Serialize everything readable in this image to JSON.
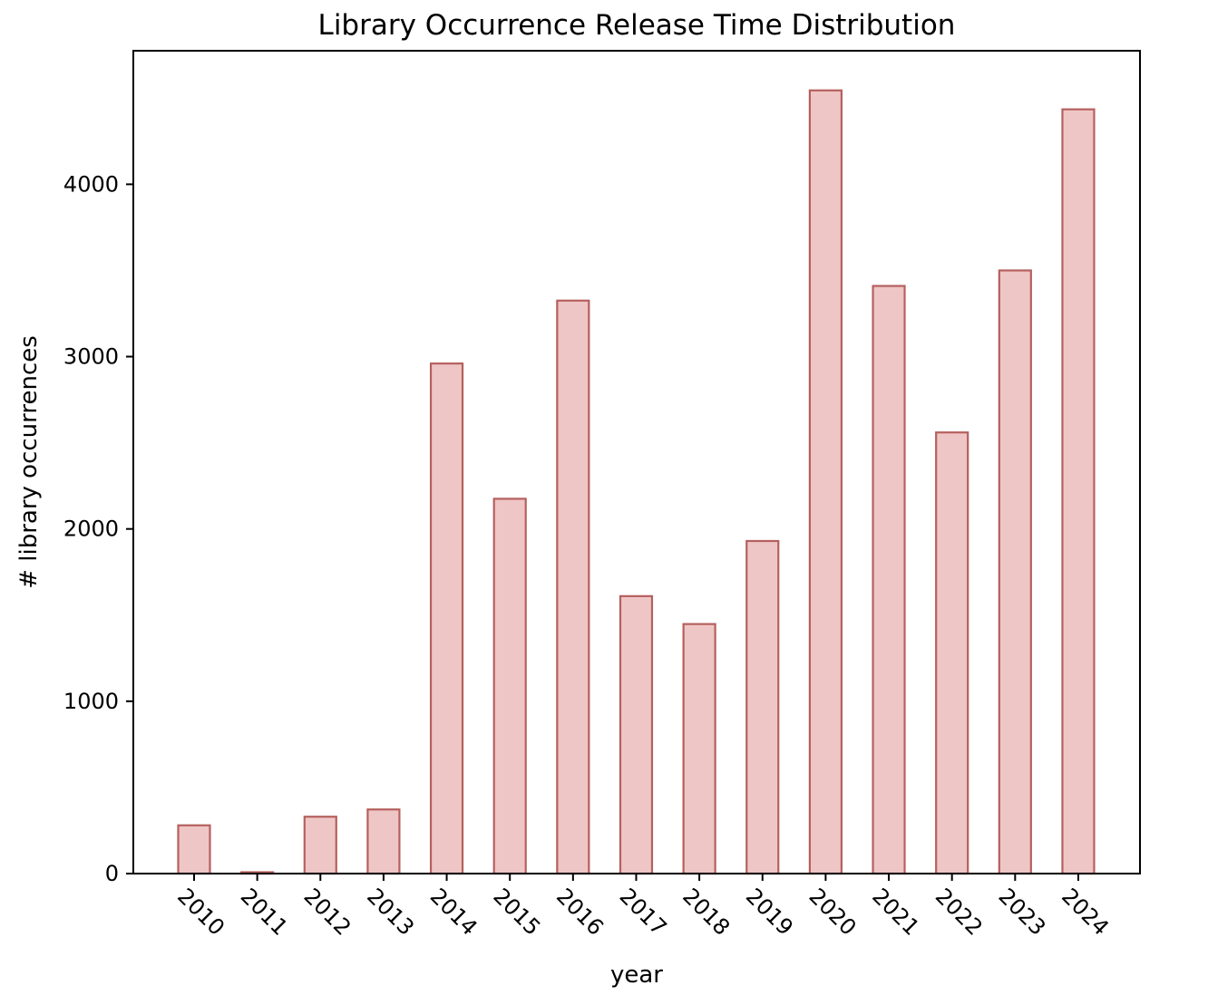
{
  "chart_data": {
    "type": "bar",
    "title": "Library Occurrence Release Time Distribution",
    "xlabel": "year",
    "ylabel": "# library occurrences",
    "categories": [
      "2010",
      "2011",
      "2012",
      "2013",
      "2014",
      "2015",
      "2016",
      "2017",
      "2018",
      "2019",
      "2020",
      "2021",
      "2022",
      "2023",
      "2024"
    ],
    "values": [
      280,
      8,
      330,
      372,
      2960,
      2175,
      3325,
      1610,
      1448,
      1930,
      4545,
      3410,
      2560,
      3500,
      4435
    ],
    "ylim": [
      0,
      4775
    ],
    "yticks": [
      0,
      1000,
      2000,
      3000,
      4000
    ],
    "grid": false,
    "colors": {
      "bar_fill": "#efc6c6",
      "bar_edge": "#b5605e"
    }
  }
}
